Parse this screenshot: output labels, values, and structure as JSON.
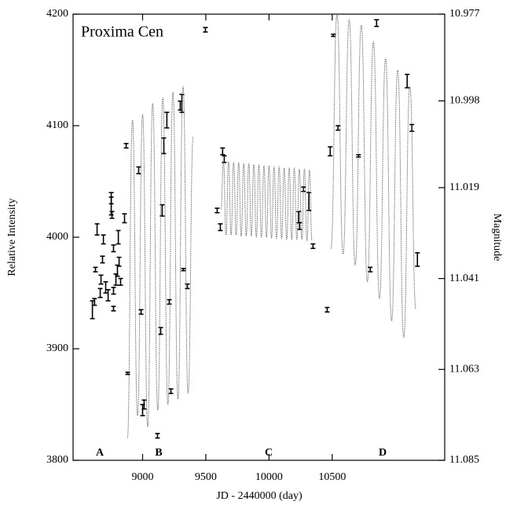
{
  "chart_data": {
    "type": "scatter",
    "title": "Proxima Cen",
    "xlabel": "JD - 2440000 (day)",
    "ylabel": "Relative Intensity",
    "y2label": "Magnitude",
    "annotations": [
      "A",
      "B",
      "C",
      "D"
    ],
    "xlim": [
      8450,
      11390
    ],
    "xticks": [
      9000,
      9500,
      10000,
      10500
    ],
    "ylim": [
      3800,
      4200
    ],
    "yticks": [
      3800,
      3900,
      4000,
      4100,
      4200
    ],
    "y2lim": [
      11.085,
      10.977
    ],
    "y2ticks": [
      10.977,
      10.998,
      11.019,
      11.041,
      11.063,
      11.085
    ],
    "series": [
      {
        "marker": "errorbar",
        "color": "#000000",
        "x": [
          8603,
          8620,
          8627,
          8640,
          8665,
          8671,
          8683,
          8690,
          8708,
          8727,
          8752,
          8752,
          8758,
          8770,
          8770,
          8770,
          8789,
          8801,
          8808,
          8814,
          8826,
          8857,
          8870,
          8882,
          8969,
          8988,
          9000,
          9012,
          9118,
          9143,
          9155,
          9168,
          9192,
          9211,
          9224,
          9298,
          9311,
          9323,
          9354,
          9497,
          9590,
          9615,
          9633,
          9646,
          10236,
          10242,
          10273,
          10316,
          10348,
          10460,
          10484,
          10509,
          10546,
          10708,
          10801,
          10851,
          11093,
          11130,
          11174
        ],
        "values": [
          3935,
          3942,
          3971,
          4007,
          3950,
          3962,
          3980,
          3998,
          3955,
          3948,
          4035,
          4028,
          4020,
          3990,
          3952,
          3936,
          3962,
          3970,
          4000,
          3978,
          3960,
          4017,
          4082,
          3878,
          4060,
          3933,
          3845,
          3850,
          3822,
          3916,
          4024,
          4082,
          4105,
          3942,
          3862,
          4118,
          4120,
          3971,
          3956,
          4186,
          4024,
          4009,
          4077,
          4070,
          4018,
          4010,
          4043,
          4032,
          3992,
          3935,
          4077,
          4181,
          4098,
          4073,
          3971,
          4192,
          4140,
          4098,
          3980
        ],
        "errors": [
          8,
          3,
          2,
          5,
          4,
          4,
          3,
          4,
          5,
          5,
          5,
          8,
          3,
          3,
          3,
          2,
          5,
          5,
          6,
          4,
          3,
          4,
          2,
          1,
          3,
          2,
          5,
          4,
          2,
          3,
          5,
          7,
          7,
          2,
          2,
          4,
          8,
          1,
          2,
          2,
          2,
          3,
          3,
          3,
          5,
          3,
          2,
          8,
          2,
          2,
          4,
          1,
          2,
          1,
          2,
          3,
          6,
          3,
          6
        ]
      },
      {
        "line": "dotted",
        "color": "#555555",
        "x": [
          8880,
          8920,
          8960,
          9000,
          9040,
          9080,
          9120,
          9160,
          9200,
          9240,
          9280,
          9320,
          9360,
          9400,
          null,
          9620,
          9640,
          9660,
          9680,
          9700,
          9720,
          9740,
          9760,
          9780,
          9800,
          9820,
          9840,
          9860,
          9880,
          9900,
          9920,
          9940,
          9960,
          9980,
          10000,
          10020,
          10040,
          10060,
          10080,
          10100,
          10120,
          10140,
          10160,
          10180,
          10200,
          10220,
          10240,
          10260,
          10280,
          10300,
          10320,
          10340,
          null,
          10490,
          10538,
          10586,
          10634,
          10682,
          10730,
          10778,
          10826,
          10874,
          10922,
          10970,
          11018,
          11066,
          11114,
          11162
        ],
        "values": [
          3820,
          4105,
          3840,
          4110,
          3830,
          4120,
          3845,
          4125,
          3850,
          4130,
          3855,
          4135,
          3860,
          4090,
          null,
          4025,
          4068,
          4002,
          4068,
          4002,
          4067,
          4002,
          4067,
          4001,
          4066,
          4001,
          4066,
          4001,
          4065,
          4000,
          4065,
          4000,
          4064,
          4000,
          4064,
          3999,
          4063,
          3999,
          4063,
          3999,
          4062,
          3998,
          4062,
          3998,
          4062,
          3998,
          4061,
          3998,
          4061,
          3997,
          4060,
          3997,
          null,
          3990,
          4200,
          3985,
          4195,
          3975,
          4190,
          3960,
          4175,
          3945,
          4160,
          3925,
          4150,
          3910,
          4135,
          3935
        ]
      }
    ]
  }
}
